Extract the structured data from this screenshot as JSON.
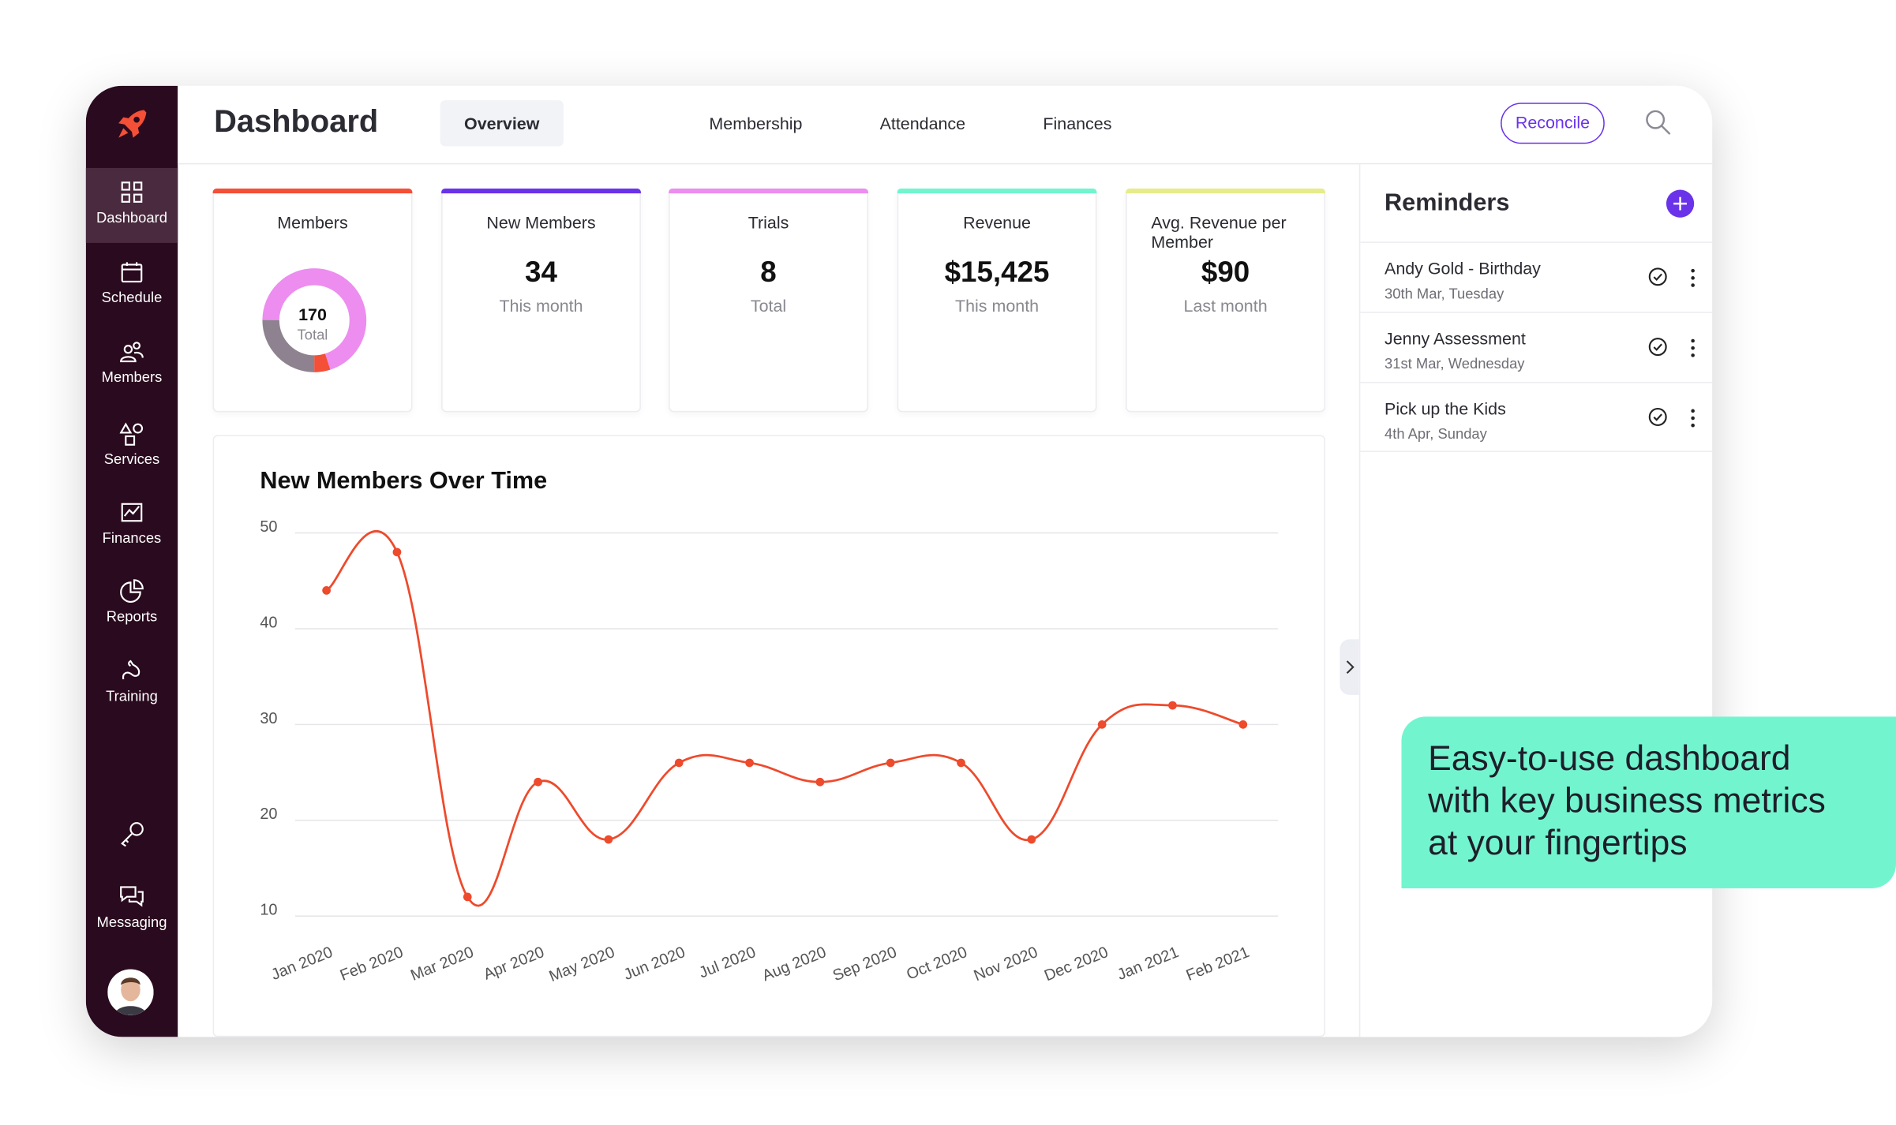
{
  "app": {
    "title": "Dashboard",
    "accent": "#6a33ea",
    "sidebar_bg": "#2a0a1e",
    "chart_color": "#ee4a2c"
  },
  "tabs": [
    {
      "label": "Overview",
      "active": true
    },
    {
      "label": "Membership",
      "active": false
    },
    {
      "label": "Attendance",
      "active": false
    },
    {
      "label": "Finances",
      "active": false
    }
  ],
  "header": {
    "reconcile_label": "Reconcile",
    "search_icon": "search-icon"
  },
  "sidebar": {
    "logo_icon": "rocket-icon",
    "items": [
      {
        "label": "Dashboard",
        "icon": "grid-icon",
        "active": true
      },
      {
        "label": "Schedule",
        "icon": "calendar-icon",
        "active": false
      },
      {
        "label": "Members",
        "icon": "users-icon",
        "active": false
      },
      {
        "label": "Services",
        "icon": "shapes-icon",
        "active": false
      },
      {
        "label": "Finances",
        "icon": "chart-icon",
        "active": false
      },
      {
        "label": "Reports",
        "icon": "pie-icon",
        "active": false
      },
      {
        "label": "Training",
        "icon": "arm-icon",
        "active": false
      },
      {
        "label": "",
        "icon": "key-icon",
        "active": false
      },
      {
        "label": "Messaging",
        "icon": "chat-icon",
        "active": false
      }
    ]
  },
  "stats": [
    {
      "title": "Members",
      "total": "170",
      "total_label": "Total",
      "color": "#f44f37",
      "donut": [
        {
          "label": "Total",
          "value": 0.7,
          "color": "#ec8def"
        },
        {
          "label": "",
          "value": 0.05,
          "color": "#f44f37"
        },
        {
          "label": "",
          "value": 0.25,
          "color": "#8e8290"
        }
      ]
    },
    {
      "title": "New Members",
      "value": "34",
      "sub": "This month",
      "color": "#6a33ea"
    },
    {
      "title": "Trials",
      "value": "8",
      "sub": "Total",
      "color": "#ec8def"
    },
    {
      "title": "Revenue",
      "value": "$15,425",
      "sub": "This month",
      "color": "#72f5cf"
    },
    {
      "title": "Avg. Revenue per Member",
      "value": "$90",
      "sub": "Last month",
      "color": "#e6ec8a"
    }
  ],
  "chart_data": {
    "type": "line",
    "title": "New Members Over Time",
    "xlabel": "",
    "ylabel": "",
    "x": [
      "Jan 2020",
      "Feb 2020",
      "Mar 2020",
      "Apr 2020",
      "May 2020",
      "Jun 2020",
      "Jul 2020",
      "Aug 2020",
      "Sep 2020",
      "Oct 2020",
      "Nov 2020",
      "Dec 2020",
      "Jan 2021",
      "Feb 2021"
    ],
    "values": [
      44,
      48,
      12,
      24,
      18,
      26,
      26,
      24,
      26,
      26,
      18,
      30,
      32,
      30
    ],
    "ylim": [
      10,
      50
    ],
    "yticks": [
      10,
      20,
      30,
      40,
      50
    ],
    "grid": true,
    "legend": "none",
    "color": "#ee4a2c"
  },
  "reminders": {
    "title": "Reminders",
    "items": [
      {
        "name": "Andy Gold - Birthday",
        "date": "30th Mar, Tuesday"
      },
      {
        "name": "Jenny Assessment",
        "date": "31st Mar, Wednesday"
      },
      {
        "name": "Pick up the Kids",
        "date": "4th Apr, Sunday"
      }
    ]
  },
  "callout": {
    "text": "Easy-to-use dashboard\nwith key business metrics\nat your fingertips",
    "color": "#72f5cf"
  }
}
